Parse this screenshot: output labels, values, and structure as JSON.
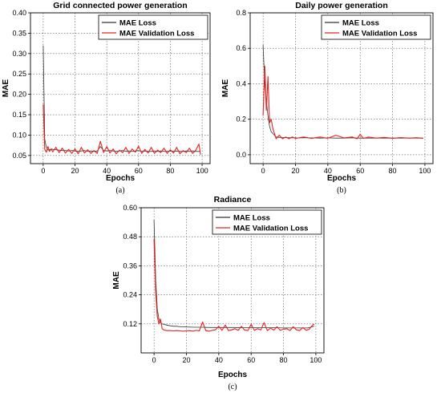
{
  "colors": {
    "train": "#333333",
    "validation": "#e8211f",
    "grid": "#555555"
  },
  "chart_data": [
    {
      "type": "line",
      "caption": "(a)",
      "title": "Grid connected power generation",
      "xlabel": "Epochs",
      "ylabel": "MAE",
      "xlim": [
        -8,
        105
      ],
      "ylim": [
        0.03,
        0.4
      ],
      "xticks": [
        0,
        20,
        40,
        60,
        80,
        100
      ],
      "yticks": [
        0.05,
        0.1,
        0.15,
        0.2,
        0.25,
        0.3,
        0.35,
        0.4
      ],
      "ytick_labels": [
        "0.05",
        "0.10",
        "0.15",
        "0.20",
        "0.25",
        "0.30",
        "0.35",
        "0.40"
      ],
      "grid": true,
      "legend": "top-right",
      "series": [
        {
          "name": "MAE Loss",
          "x": [
            0,
            1,
            2,
            3,
            4,
            5,
            6,
            8,
            10,
            12,
            14,
            16,
            18,
            20,
            22,
            24,
            26,
            28,
            30,
            32,
            34,
            36,
            38,
            40,
            42,
            44,
            46,
            48,
            50,
            52,
            54,
            56,
            58,
            60,
            62,
            64,
            66,
            68,
            70,
            72,
            74,
            76,
            78,
            80,
            82,
            84,
            86,
            88,
            90,
            92,
            94,
            96,
            98,
            99
          ],
          "values": [
            0.32,
            0.09,
            0.07,
            0.063,
            0.064,
            0.066,
            0.065,
            0.064,
            0.063,
            0.062,
            0.062,
            0.061,
            0.062,
            0.061,
            0.06,
            0.061,
            0.062,
            0.06,
            0.061,
            0.06,
            0.061,
            0.072,
            0.062,
            0.061,
            0.062,
            0.061,
            0.06,
            0.061,
            0.062,
            0.06,
            0.061,
            0.06,
            0.061,
            0.062,
            0.06,
            0.061,
            0.06,
            0.06,
            0.061,
            0.06,
            0.061,
            0.06,
            0.06,
            0.061,
            0.06,
            0.061,
            0.06,
            0.06,
            0.061,
            0.06,
            0.061,
            0.06,
            0.06,
            0.061
          ]
        },
        {
          "name": "MAE Validation Loss",
          "x": [
            0,
            1,
            2,
            3,
            4,
            5,
            6,
            8,
            10,
            12,
            14,
            16,
            18,
            20,
            22,
            24,
            26,
            28,
            30,
            32,
            34,
            36,
            38,
            40,
            42,
            44,
            46,
            48,
            50,
            52,
            54,
            56,
            58,
            60,
            62,
            64,
            66,
            68,
            70,
            72,
            74,
            76,
            78,
            80,
            82,
            84,
            86,
            88,
            90,
            92,
            94,
            96,
            98,
            99
          ],
          "values": [
            0.175,
            0.065,
            0.058,
            0.072,
            0.06,
            0.066,
            0.059,
            0.07,
            0.057,
            0.068,
            0.056,
            0.065,
            0.055,
            0.066,
            0.054,
            0.07,
            0.056,
            0.064,
            0.055,
            0.062,
            0.055,
            0.085,
            0.057,
            0.072,
            0.056,
            0.066,
            0.054,
            0.063,
            0.057,
            0.07,
            0.055,
            0.066,
            0.058,
            0.073,
            0.055,
            0.065,
            0.056,
            0.07,
            0.055,
            0.063,
            0.057,
            0.068,
            0.055,
            0.064,
            0.056,
            0.07,
            0.054,
            0.062,
            0.057,
            0.068,
            0.055,
            0.063,
            0.078,
            0.052
          ]
        }
      ]
    },
    {
      "type": "line",
      "caption": "(b)",
      "title": "Daily power generation",
      "xlabel": "Epochs",
      "ylabel": "MAE",
      "xlim": [
        -8,
        105
      ],
      "ylim": [
        -0.05,
        0.8
      ],
      "xticks": [
        0,
        20,
        40,
        60,
        80,
        100
      ],
      "yticks": [
        0.0,
        0.2,
        0.4,
        0.6,
        0.8
      ],
      "ytick_labels": [
        "0.0",
        "0.2",
        "0.4",
        "0.6",
        "0.8"
      ],
      "grid": true,
      "legend": "top-right",
      "series": [
        {
          "name": "MAE Loss",
          "x": [
            0,
            1,
            2,
            3,
            4,
            5,
            6,
            7,
            8,
            10,
            12,
            14,
            16,
            18,
            20,
            25,
            30,
            35,
            40,
            45,
            50,
            55,
            60,
            65,
            70,
            75,
            80,
            85,
            90,
            95,
            99
          ],
          "values": [
            0.62,
            0.4,
            0.3,
            0.22,
            0.16,
            0.13,
            0.12,
            0.11,
            0.1,
            0.098,
            0.097,
            0.096,
            0.096,
            0.095,
            0.095,
            0.095,
            0.095,
            0.094,
            0.095,
            0.094,
            0.094,
            0.095,
            0.094,
            0.094,
            0.094,
            0.094,
            0.094,
            0.094,
            0.094,
            0.094,
            0.094
          ]
        },
        {
          "name": "MAE Validation Loss",
          "x": [
            0,
            1,
            2,
            3,
            4,
            5,
            6,
            7,
            8,
            10,
            12,
            14,
            16,
            18,
            20,
            25,
            30,
            35,
            40,
            45,
            50,
            55,
            58,
            60,
            62,
            65,
            70,
            75,
            80,
            85,
            90,
            95,
            99
          ],
          "values": [
            0.22,
            0.5,
            0.25,
            0.44,
            0.18,
            0.2,
            0.15,
            0.12,
            0.09,
            0.11,
            0.09,
            0.1,
            0.09,
            0.1,
            0.092,
            0.1,
            0.092,
            0.1,
            0.093,
            0.11,
            0.095,
            0.1,
            0.09,
            0.115,
            0.092,
            0.1,
            0.094,
            0.098,
            0.093,
            0.097,
            0.094,
            0.096,
            0.093
          ]
        }
      ]
    },
    {
      "type": "line",
      "caption": "(c)",
      "title": "Radiance",
      "xlabel": "Epochs",
      "ylabel": "MAE",
      "xlim": [
        -8,
        105
      ],
      "ylim": [
        0.0,
        0.6
      ],
      "xticks": [
        0,
        20,
        40,
        60,
        80,
        100
      ],
      "yticks": [
        0.12,
        0.24,
        0.36,
        0.48,
        0.6
      ],
      "ytick_labels": [
        "0.12",
        "0.24",
        "0.36",
        "0.48",
        "0.60"
      ],
      "grid": true,
      "legend": "top-right",
      "series": [
        {
          "name": "MAE Loss",
          "x": [
            0,
            1,
            2,
            3,
            4,
            5,
            6,
            8,
            10,
            12,
            14,
            16,
            18,
            20,
            25,
            30,
            35,
            40,
            45,
            50,
            55,
            60,
            65,
            70,
            75,
            80,
            85,
            90,
            95,
            99
          ],
          "values": [
            0.55,
            0.3,
            0.18,
            0.14,
            0.125,
            0.12,
            0.118,
            0.115,
            0.112,
            0.11,
            0.11,
            0.108,
            0.108,
            0.107,
            0.106,
            0.106,
            0.105,
            0.105,
            0.105,
            0.105,
            0.104,
            0.104,
            0.104,
            0.104,
            0.104,
            0.103,
            0.103,
            0.103,
            0.103,
            0.11
          ]
        },
        {
          "name": "MAE Validation Loss",
          "x": [
            0,
            1,
            2,
            3,
            4,
            5,
            6,
            7,
            8,
            10,
            12,
            14,
            16,
            18,
            20,
            22,
            24,
            26,
            28,
            30,
            32,
            34,
            36,
            38,
            40,
            42,
            44,
            46,
            48,
            50,
            52,
            54,
            56,
            58,
            60,
            62,
            64,
            66,
            68,
            70,
            72,
            74,
            76,
            78,
            80,
            82,
            84,
            86,
            88,
            90,
            92,
            94,
            96,
            98,
            99
          ],
          "values": [
            0.47,
            0.25,
            0.15,
            0.12,
            0.14,
            0.1,
            0.095,
            0.093,
            0.092,
            0.092,
            0.091,
            0.092,
            0.091,
            0.09,
            0.091,
            0.092,
            0.09,
            0.093,
            0.091,
            0.128,
            0.092,
            0.09,
            0.093,
            0.095,
            0.11,
            0.093,
            0.115,
            0.092,
            0.095,
            0.1,
            0.093,
            0.11,
            0.094,
            0.092,
            0.118,
            0.093,
            0.1,
            0.095,
            0.125,
            0.092,
            0.102,
            0.094,
            0.108,
            0.093,
            0.098,
            0.1,
            0.092,
            0.108,
            0.095,
            0.092,
            0.105,
            0.093,
            0.098,
            0.115,
            0.118
          ]
        }
      ]
    }
  ]
}
